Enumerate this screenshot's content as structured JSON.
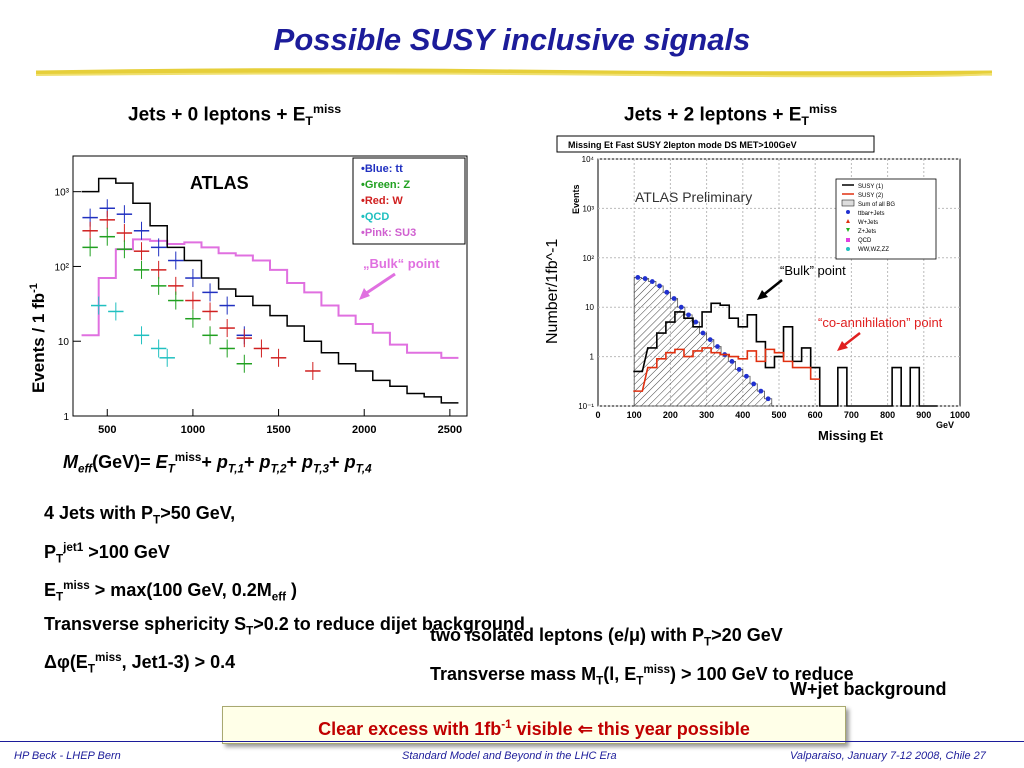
{
  "slide": {
    "title": "Possible SUSY inclusive signals",
    "left_subhead": {
      "main": "Jets + 0 leptons + E",
      "sub": "T",
      "sup": "miss"
    },
    "right_subhead": {
      "main": "Jets + 2 leptons + E",
      "sub": "T",
      "sup": "miss"
    },
    "meff_formula": {
      "m": "M",
      "m_sub": "eff",
      "unit": "(GeV)= ",
      "e": "E",
      "e_sub": "T",
      "e_sup": "miss",
      "p": "p",
      "p1": "T,1",
      "p2": "T,2",
      "p3": "T,3",
      "p4": "T,4",
      "plus": "+ "
    },
    "cuts": {
      "l1": {
        "a": "4 Jets with P",
        "sub": "T",
        "b": ">50 GeV,"
      },
      "l2": {
        "a": "P",
        "sub": "T",
        "sup": "jet1",
        "b": " >100 GeV"
      },
      "l3": {
        "a": "E",
        "sub": "T",
        "sup": "miss",
        "b": " > max(100 GeV, 0.2M",
        "sub2": "eff",
        "c": " )"
      },
      "l4": {
        "a": "Transverse sphericity S",
        "sub": "T",
        "b": ">0.2 to reduce dijet background"
      },
      "l5": {
        "a": "Δφ(E",
        "sub": "T",
        "sup": "miss",
        "b": ", Jet1-3) > 0.4"
      }
    },
    "right_text": {
      "l1": {
        "a": "two isolated leptons (e/μ) with P",
        "sub": "T",
        "b": ">20 GeV"
      },
      "l2": {
        "a": "Transverse mass M",
        "sub": "T",
        "b": "(l, E",
        "sub2": "T",
        "sup": "miss",
        "c": ") > 100 GeV to reduce"
      },
      "l3": "W+jet background"
    },
    "callout": {
      "a": "Clear excess with 1fb",
      "sup": "-1",
      "b": " visible ⇐ this year possible"
    },
    "footer": {
      "left": "HP Beck - LHEP Bern",
      "center": "Standard Model and Beyond in the LHC Era",
      "right": "Valparaiso, January 7-12 2008, Chile  27"
    },
    "colors": {
      "title": "#1c1c9a",
      "callout_text": "#c00000"
    }
  },
  "chart_data": [
    {
      "type": "line",
      "title": "",
      "ylabel": "Events / 1 fb",
      "ylabel_sup": "-1",
      "xlabel": "",
      "xlim": [
        300,
        2600
      ],
      "ylim": [
        1,
        3000
      ],
      "log_y": true,
      "x_ticks": [
        "500",
        "1000",
        "1500",
        "2000",
        "2500"
      ],
      "y_ticks": [
        "1",
        "10",
        "10²",
        "10³"
      ],
      "annotation_atlas": "ATLAS",
      "annotation_bulk": "„Bulk“ point",
      "legend": [
        "•Blue: tt",
        "•Green: Z",
        "•Red: W",
        "•QCD",
        "•Pink: SU3"
      ],
      "legend_placement": "top-right",
      "series": [
        {
          "name": "•Pink: SU3",
          "color": "#e070e0",
          "x": [
            400,
            500,
            600,
            700,
            800,
            900,
            1000,
            1100,
            1200,
            1300,
            1400,
            1500,
            1600,
            1700,
            1800,
            1900,
            2000,
            2100,
            2200,
            2300,
            2400,
            2500
          ],
          "y": [
            12,
            70,
            170,
            230,
            220,
            200,
            210,
            180,
            150,
            140,
            120,
            90,
            60,
            45,
            30,
            22,
            17,
            13,
            9,
            7,
            7,
            6
          ]
        },
        {
          "name": "",
          "color": "#000000",
          "x": [
            400,
            500,
            600,
            700,
            800,
            900,
            1000,
            1100,
            1200,
            1300,
            1400,
            1500,
            1600,
            1700,
            1800,
            1900,
            2000,
            2100,
            2200,
            2300,
            2400,
            2500
          ],
          "y": [
            1000,
            1500,
            1300,
            700,
            350,
            180,
            120,
            70,
            50,
            40,
            30,
            22,
            16,
            10,
            7,
            5,
            4,
            3,
            2.5,
            2,
            1.8,
            1.5
          ]
        },
        {
          "name": "•Blue: tt",
          "color": "#2030c0",
          "x": [
            400,
            500,
            600,
            700,
            800,
            900,
            1000,
            1100,
            1200,
            1300
          ],
          "y": [
            450,
            600,
            500,
            300,
            180,
            120,
            70,
            45,
            30,
            12
          ]
        },
        {
          "name": "•Red: W",
          "color": "#d02020",
          "x": [
            400,
            500,
            600,
            700,
            800,
            900,
            1000,
            1100,
            1200,
            1300,
            1400,
            1500,
            1700
          ],
          "y": [
            300,
            420,
            280,
            160,
            90,
            55,
            35,
            25,
            15,
            11,
            8,
            6,
            4
          ]
        },
        {
          "name": "•Green: Z",
          "color": "#20a020",
          "x": [
            400,
            500,
            600,
            700,
            800,
            900,
            1000,
            1100,
            1200,
            1300
          ],
          "y": [
            180,
            250,
            170,
            90,
            55,
            35,
            20,
            12,
            8,
            5
          ]
        },
        {
          "name": "•QCD",
          "color": "#20c0c0",
          "x": [
            450,
            550,
            700,
            800,
            850
          ],
          "y": [
            30,
            25,
            12,
            8,
            6
          ]
        }
      ]
    },
    {
      "type": "line",
      "title": "Missing Et Fast SUSY 2lepton mode DS MET>100GeV",
      "ylabel": "Number/1fb^-1",
      "ylabel_small": "Events",
      "xlabel": "Missing Et",
      "xunit": "GeV",
      "xlim": [
        0,
        1000
      ],
      "ylim": [
        0.1,
        10000
      ],
      "log_y": true,
      "x_ticks": [
        "0",
        "100",
        "200",
        "300",
        "400",
        "500",
        "600",
        "700",
        "800",
        "900",
        "1000"
      ],
      "y_ticks": [
        "10⁻¹",
        "1",
        "10",
        "10²",
        "10³",
        "10⁴"
      ],
      "annotation_atlas": "ATLAS Preliminary",
      "annotation_bulk": "“Bulk” point",
      "annotation_coann": "“co-annihilation” point",
      "legend": [
        "SUSY (1)",
        "SUSY (2)",
        "Sum of all BG",
        "ttbar+Jets",
        "W+Jets",
        "Z+Jets",
        "QCD",
        "WW,WZ,ZZ"
      ],
      "legend_placement": "top-right",
      "series": [
        {
          "name": "",
          "color": "#2030d0",
          "x": [
            110,
            130,
            150,
            170,
            190,
            210,
            230,
            250,
            270,
            290,
            310,
            330,
            350,
            370,
            390,
            410,
            430,
            450,
            470
          ],
          "y": [
            40,
            38,
            33,
            27,
            20,
            15,
            10,
            7,
            5,
            3,
            2.2,
            1.6,
            1.1,
            0.8,
            0.55,
            0.4,
            0.28,
            0.2,
            0.14
          ]
        },
        {
          "name": "",
          "color": "#000000",
          "x": [
            110,
            150,
            175,
            200,
            225,
            250,
            275,
            300,
            325,
            350,
            375,
            400,
            425,
            450,
            475,
            500,
            525,
            550,
            575,
            600,
            625,
            650,
            675,
            700,
            725,
            750,
            775,
            800,
            825,
            850,
            875,
            900,
            925
          ],
          "y": [
            0.5,
            1.5,
            3,
            5,
            8,
            6,
            4,
            8,
            12,
            11,
            6,
            4,
            7,
            2,
            0.6,
            1,
            4,
            0.8,
            1.5,
            0.6,
            0.1,
            0.1,
            0.6,
            0.1,
            0.1,
            0.1,
            0.1,
            0.1,
            0.6,
            0.1,
            0.6,
            0.1,
            0.1
          ]
        },
        {
          "name": "",
          "color": "#e03010",
          "x": [
            110,
            150,
            175,
            200,
            225,
            250,
            275,
            300,
            325,
            350,
            375,
            400,
            425,
            450,
            475,
            500,
            525,
            550,
            575,
            600
          ],
          "y": [
            0.2,
            0.6,
            0.9,
            1.2,
            1.4,
            1.0,
            1.3,
            1.5,
            1.2,
            1.1,
            1.0,
            0.9,
            1.3,
            0.8,
            1.4,
            1.2,
            0.8,
            0.6,
            0.6,
            0.35
          ]
        }
      ]
    }
  ]
}
